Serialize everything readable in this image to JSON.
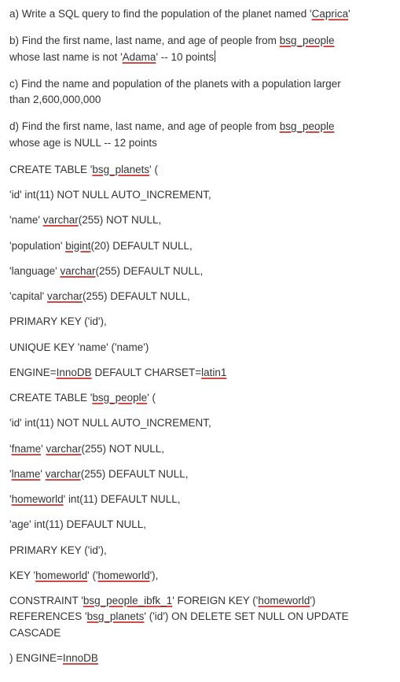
{
  "questions": {
    "a": {
      "prefix": "a) Write a SQL query to find the population of the planet named '",
      "u1": "Caprica",
      "suffix": "'"
    },
    "b": {
      "l1_prefix": "b) Find the first name, last name, and age of people from ",
      "l1_u": "bsg_people",
      "l2_prefix": "whose last name is not '",
      "l2_u": "Adama",
      "l2_suffix": "' -- 10 points"
    },
    "c": {
      "l1": "c) Find the name and population of the planets with a population larger",
      "l2": "than 2,600,000,000"
    },
    "d": {
      "l1_prefix": "d) Find the first name, last name, and age of people from ",
      "l1_u": "bsg_people",
      "l2": "whose age is NULL -- 12 points"
    }
  },
  "sql": {
    "t1": {
      "create_prefix": "CREATE TABLE '",
      "create_u": "bsg_planets",
      "create_suffix": "' (",
      "id": "'id' int(11) NOT NULL AUTO_INCREMENT,",
      "name_prefix": "'name' ",
      "name_u": "varchar",
      "name_suffix": "(255) NOT NULL,",
      "pop_prefix": "'population' ",
      "pop_u": "bigint",
      "pop_suffix": "(20) DEFAULT NULL,",
      "lang_prefix": "'language' ",
      "lang_u": "varchar",
      "lang_suffix": "(255) DEFAULT NULL,",
      "cap_prefix": "'capital' ",
      "cap_u": "varchar",
      "cap_suffix": "(255) DEFAULT NULL,",
      "pk": "PRIMARY KEY ('id'),",
      "uk": "UNIQUE KEY 'name' ('name')",
      "eng_prefix": "ENGINE=",
      "eng_u1": "InnoDB",
      "eng_mid": " DEFAULT CHARSET=",
      "eng_u2": "latin1"
    },
    "t2": {
      "create_prefix": "CREATE TABLE '",
      "create_u": "bsg_people",
      "create_suffix": "' (",
      "id": "'id' int(11) NOT NULL AUTO_INCREMENT,",
      "fn_prefix": "'",
      "fn_u1": "fname",
      "fn_mid": "' ",
      "fn_u2": "varchar",
      "fn_suffix": "(255) NOT NULL,",
      "ln_prefix": "'",
      "ln_u1": "lname",
      "ln_mid": "' ",
      "ln_u2": "varchar",
      "ln_suffix": "(255) DEFAULT NULL,",
      "hw_prefix": "'",
      "hw_u": "homeworld",
      "hw_suffix": "' int(11) DEFAULT NULL,",
      "age": "'age' int(11) DEFAULT NULL,",
      "pk": "PRIMARY KEY ('id'),",
      "key_prefix": "KEY '",
      "key_u1": "homeworld",
      "key_mid": "' ('",
      "key_u2": "homeworld",
      "key_suffix": "'),",
      "con_l1_prefix": "CONSTRAINT '",
      "con_l1_u1": "bsg_people_ibfk_1",
      "con_l1_mid": "' FOREIGN KEY ('",
      "con_l1_u2": "homeworld",
      "con_l1_suffix": "')",
      "con_l2_prefix": "REFERENCES '",
      "con_l2_u": "bsg_planets",
      "con_l2_suffix": "' ('id') ON DELETE SET NULL ON UPDATE",
      "con_l3": "CASCADE",
      "close_prefix": ") ENGINE=",
      "close_u": "InnoDB"
    }
  }
}
